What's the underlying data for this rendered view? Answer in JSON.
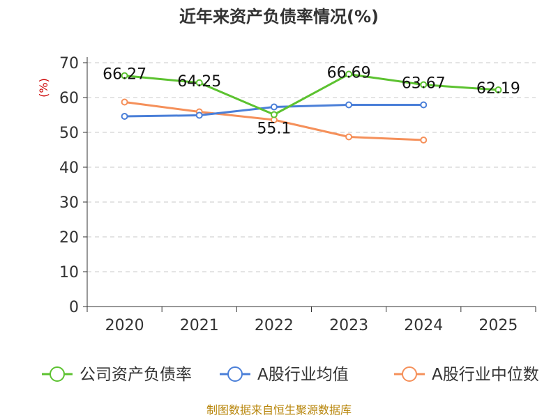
{
  "chart_data": {
    "type": "line",
    "title": "近年来资产负债率情况(%)",
    "ylabel": "(%)",
    "xlabel": "",
    "categories": [
      "2020",
      "2021",
      "2022",
      "2023",
      "2024",
      "2025"
    ],
    "ylim": [
      0,
      70
    ],
    "yticks": [
      0,
      10,
      20,
      30,
      40,
      50,
      60,
      70
    ],
    "grid": true,
    "legend_position": "bottom",
    "series": [
      {
        "name": "公司资产负债率",
        "color": "#5cc230",
        "values": [
          66.27,
          64.25,
          55.1,
          66.69,
          63.67,
          62.19
        ],
        "labels": [
          "66.27",
          "64.25",
          "55.1",
          "66.69",
          "63.67",
          "62.19"
        ]
      },
      {
        "name": "A股行业均值",
        "color": "#4a7fd8",
        "values": [
          54.6,
          54.9,
          57.3,
          57.9,
          57.9,
          null
        ]
      },
      {
        "name": "A股行业中位数",
        "color": "#f5905a",
        "values": [
          58.7,
          55.9,
          53.6,
          48.7,
          47.8,
          null
        ]
      }
    ]
  },
  "source": "制图数据来自恒生聚源数据库"
}
